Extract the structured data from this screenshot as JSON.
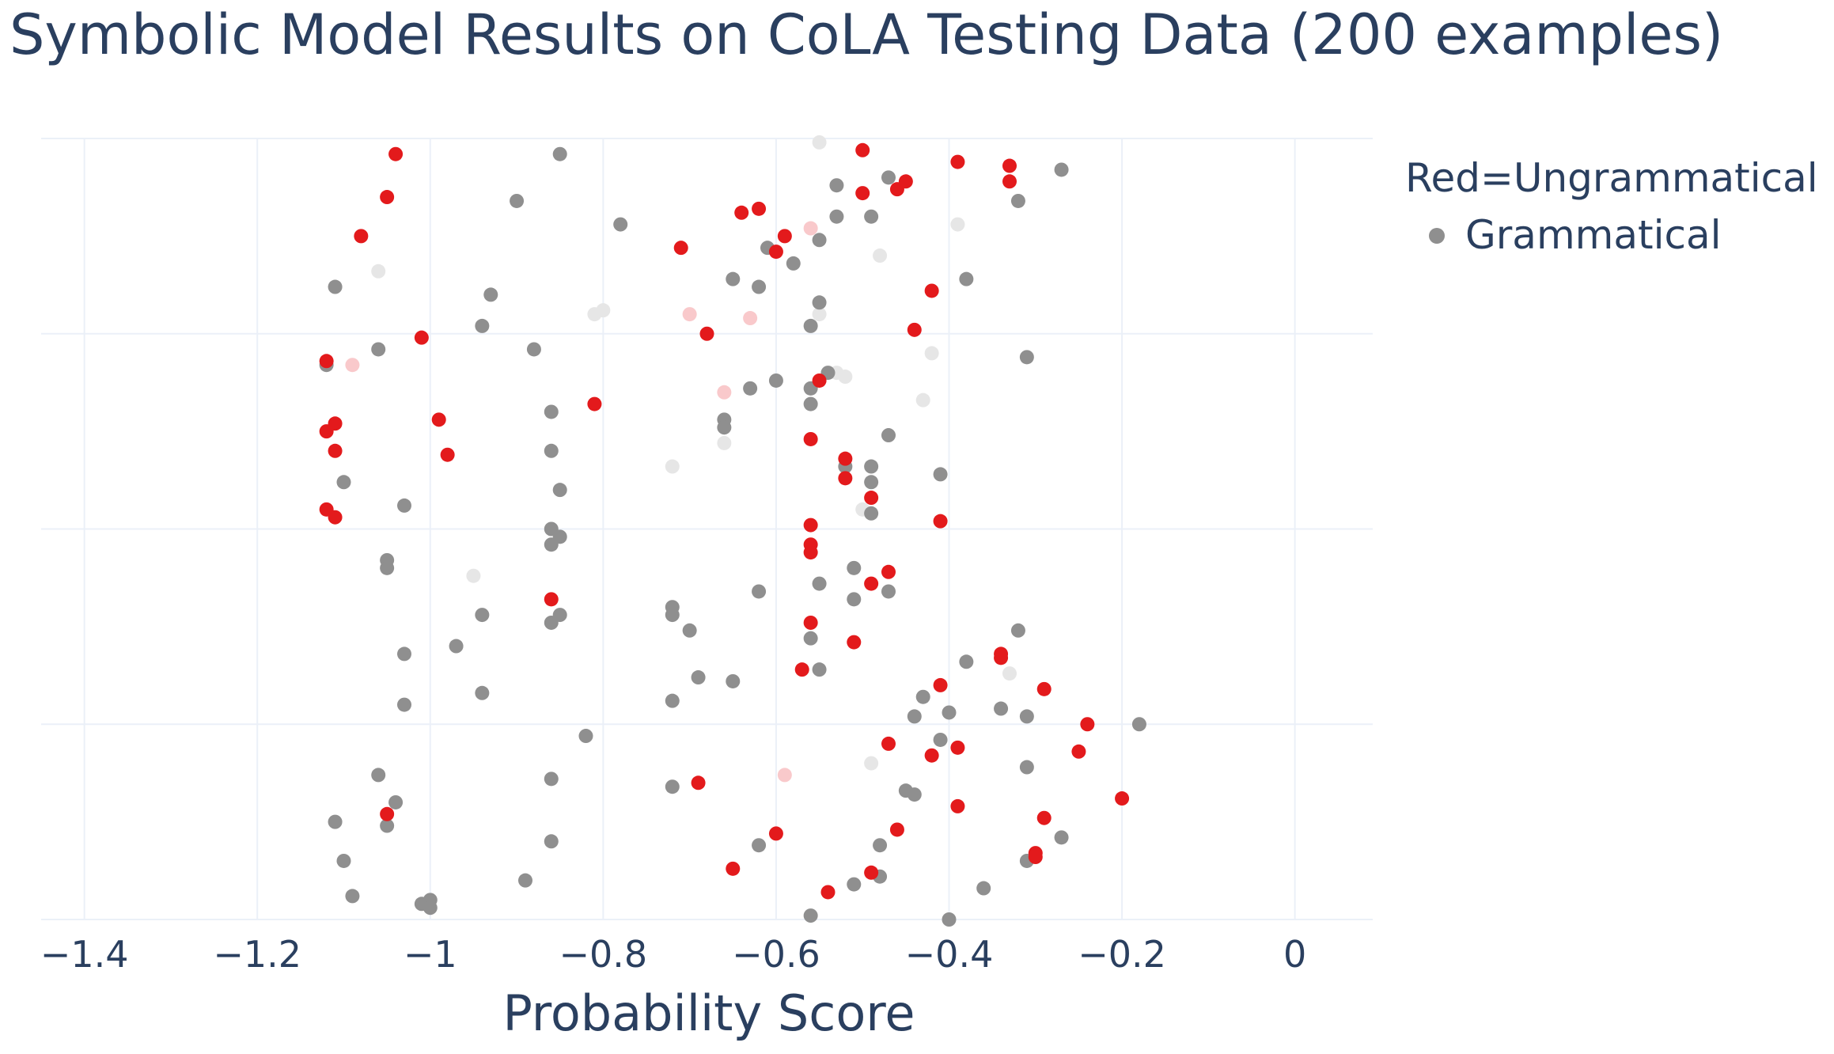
{
  "chart_data": {
    "type": "scatter",
    "title": "Symbolic Model Results on CoLA Testing Data (200 examples)",
    "xlabel": "Probability Score",
    "ylabel": "",
    "xlim": [
      -1.45,
      0.09
    ],
    "ylim": [
      0,
      1
    ],
    "xticks": [
      -1.4,
      -1.2,
      -1,
      -0.8,
      -0.6,
      -0.4,
      -0.2,
      0
    ],
    "xtick_labels": [
      "−1.4",
      "−1.2",
      "−1",
      "−0.8",
      "−0.6",
      "−0.4",
      "−0.2",
      "0"
    ],
    "grid": true,
    "legend_position": "top-right",
    "legend_title": "Red=Ungrammatical",
    "colors": {
      "grammatical": "#8f8f8f",
      "ungrammatical": "#e31a1c",
      "faded_grey": "#e6e6e6",
      "faded_red": "#f9c9cb"
    },
    "series": [
      {
        "name": "Grammatical",
        "points": [
          [
            -0.85,
            0.98
          ],
          [
            -0.53,
            0.94
          ],
          [
            -0.47,
            0.95
          ],
          [
            -0.32,
            0.92
          ],
          [
            -0.27,
            0.96
          ],
          [
            -0.9,
            0.92
          ],
          [
            -0.78,
            0.89
          ],
          [
            -0.53,
            0.9
          ],
          [
            -0.49,
            0.9
          ],
          [
            -0.55,
            0.87
          ],
          [
            -0.61,
            0.86
          ],
          [
            -0.58,
            0.84
          ],
          [
            -1.11,
            0.81
          ],
          [
            -0.93,
            0.8
          ],
          [
            -0.65,
            0.82
          ],
          [
            -0.62,
            0.81
          ],
          [
            -0.55,
            0.79
          ],
          [
            -0.38,
            0.82
          ],
          [
            -0.94,
            0.76
          ],
          [
            -0.56,
            0.76
          ],
          [
            -1.06,
            0.73
          ],
          [
            -0.88,
            0.73
          ],
          [
            -0.31,
            0.72
          ],
          [
            -1.12,
            0.71
          ],
          [
            -0.54,
            0.7
          ],
          [
            -0.63,
            0.68
          ],
          [
            -0.6,
            0.69
          ],
          [
            -0.56,
            0.68
          ],
          [
            -0.86,
            0.65
          ],
          [
            -0.56,
            0.66
          ],
          [
            -0.66,
            0.64
          ],
          [
            -0.66,
            0.63
          ],
          [
            -0.47,
            0.62
          ],
          [
            -0.86,
            0.6
          ],
          [
            -0.52,
            0.58
          ],
          [
            -0.49,
            0.58
          ],
          [
            -0.41,
            0.57
          ],
          [
            -1.1,
            0.56
          ],
          [
            -0.85,
            0.55
          ],
          [
            -0.49,
            0.56
          ],
          [
            -1.03,
            0.53
          ],
          [
            -0.49,
            0.52
          ],
          [
            -0.86,
            0.5
          ],
          [
            -0.85,
            0.49
          ],
          [
            -0.86,
            0.48
          ],
          [
            -1.05,
            0.46
          ],
          [
            -1.05,
            0.45
          ],
          [
            -0.51,
            0.45
          ],
          [
            -0.55,
            0.43
          ],
          [
            -0.62,
            0.42
          ],
          [
            -0.47,
            0.42
          ],
          [
            -0.51,
            0.41
          ],
          [
            -0.72,
            0.4
          ],
          [
            -0.72,
            0.39
          ],
          [
            -0.94,
            0.39
          ],
          [
            -0.85,
            0.39
          ],
          [
            -0.86,
            0.38
          ],
          [
            -0.7,
            0.37
          ],
          [
            -0.56,
            0.36
          ],
          [
            -0.32,
            0.37
          ],
          [
            -0.97,
            0.35
          ],
          [
            -1.03,
            0.34
          ],
          [
            -0.38,
            0.33
          ],
          [
            -0.55,
            0.32
          ],
          [
            -0.69,
            0.31
          ],
          [
            -0.65,
            0.305
          ],
          [
            -0.94,
            0.29
          ],
          [
            -0.72,
            0.28
          ],
          [
            -1.03,
            0.275
          ],
          [
            -0.43,
            0.285
          ],
          [
            -0.34,
            0.27
          ],
          [
            -0.4,
            0.265
          ],
          [
            -0.44,
            0.26
          ],
          [
            -0.31,
            0.26
          ],
          [
            -0.18,
            0.25
          ],
          [
            -0.82,
            0.235
          ],
          [
            -0.41,
            0.23
          ],
          [
            -0.31,
            0.195
          ],
          [
            -1.06,
            0.185
          ],
          [
            -0.86,
            0.18
          ],
          [
            -0.72,
            0.17
          ],
          [
            -0.45,
            0.165
          ],
          [
            -0.44,
            0.16
          ],
          [
            -1.04,
            0.15
          ],
          [
            -1.11,
            0.125
          ],
          [
            -1.05,
            0.12
          ],
          [
            -0.27,
            0.105
          ],
          [
            -0.86,
            0.1
          ],
          [
            -0.62,
            0.095
          ],
          [
            -0.48,
            0.095
          ],
          [
            -0.31,
            0.075
          ],
          [
            -1.1,
            0.075
          ],
          [
            -0.89,
            0.05
          ],
          [
            -0.51,
            0.045
          ],
          [
            -0.48,
            0.055
          ],
          [
            -0.36,
            0.04
          ],
          [
            -1.09,
            0.03
          ],
          [
            -1.01,
            0.02
          ],
          [
            -1,
            0.025
          ],
          [
            -1,
            0.015
          ],
          [
            -0.56,
            0.005
          ],
          [
            -0.4,
            0.0
          ]
        ]
      },
      {
        "name": "",
        "points": [
          [
            -1.04,
            0.98
          ],
          [
            -0.5,
            0.985
          ],
          [
            -0.39,
            0.97
          ],
          [
            -0.33,
            0.965
          ],
          [
            -0.45,
            0.945
          ],
          [
            -0.33,
            0.945
          ],
          [
            -1.05,
            0.925
          ],
          [
            -0.5,
            0.93
          ],
          [
            -0.46,
            0.935
          ],
          [
            -0.64,
            0.905
          ],
          [
            -0.62,
            0.91
          ],
          [
            -1.08,
            0.875
          ],
          [
            -0.59,
            0.875
          ],
          [
            -0.71,
            0.86
          ],
          [
            -0.6,
            0.855
          ],
          [
            -0.42,
            0.805
          ],
          [
            -0.44,
            0.755
          ],
          [
            -1.01,
            0.745
          ],
          [
            -0.68,
            0.75
          ],
          [
            -1.12,
            0.715
          ],
          [
            -0.55,
            0.69
          ],
          [
            -0.81,
            0.66
          ],
          [
            -0.99,
            0.64
          ],
          [
            -1.11,
            0.635
          ],
          [
            -1.12,
            0.625
          ],
          [
            -0.56,
            0.615
          ],
          [
            -1.11,
            0.6
          ],
          [
            -0.98,
            0.595
          ],
          [
            -0.52,
            0.59
          ],
          [
            -0.52,
            0.565
          ],
          [
            -0.49,
            0.54
          ],
          [
            -1.12,
            0.525
          ],
          [
            -1.11,
            0.515
          ],
          [
            -0.41,
            0.51
          ],
          [
            -0.56,
            0.505
          ],
          [
            -0.56,
            0.48
          ],
          [
            -0.56,
            0.47
          ],
          [
            -0.47,
            0.445
          ],
          [
            -0.49,
            0.43
          ],
          [
            -0.86,
            0.41
          ],
          [
            -0.56,
            0.38
          ],
          [
            -0.51,
            0.355
          ],
          [
            -0.34,
            0.34
          ],
          [
            -0.34,
            0.335
          ],
          [
            -0.57,
            0.32
          ],
          [
            -0.41,
            0.3
          ],
          [
            -0.29,
            0.295
          ],
          [
            -0.24,
            0.25
          ],
          [
            -0.47,
            0.225
          ],
          [
            -0.39,
            0.22
          ],
          [
            -0.42,
            0.21
          ],
          [
            -0.25,
            0.215
          ],
          [
            -0.69,
            0.175
          ],
          [
            -0.2,
            0.155
          ],
          [
            -0.39,
            0.145
          ],
          [
            -1.05,
            0.135
          ],
          [
            -0.29,
            0.13
          ],
          [
            -0.46,
            0.115
          ],
          [
            -0.6,
            0.11
          ],
          [
            -0.3,
            0.085
          ],
          [
            -0.3,
            0.08
          ],
          [
            -0.65,
            0.065
          ],
          [
            -0.49,
            0.06
          ],
          [
            -0.54,
            0.035
          ]
        ]
      }
    ],
    "faded_points": {
      "grey": [
        [
          -0.55,
          0.995
        ],
        [
          -0.39,
          0.89
        ],
        [
          -0.48,
          0.85
        ],
        [
          -1.06,
          0.83
        ],
        [
          -0.81,
          0.775
        ],
        [
          -0.8,
          0.78
        ],
        [
          -0.55,
          0.775
        ],
        [
          -0.42,
          0.725
        ],
        [
          -0.53,
          0.7
        ],
        [
          -0.52,
          0.695
        ],
        [
          -0.43,
          0.665
        ],
        [
          -0.72,
          0.58
        ],
        [
          -0.66,
          0.61
        ],
        [
          -0.5,
          0.525
        ],
        [
          -0.95,
          0.44
        ],
        [
          -0.33,
          0.315
        ],
        [
          -0.49,
          0.2
        ]
      ],
      "red": [
        [
          -0.56,
          0.885
        ],
        [
          -0.7,
          0.775
        ],
        [
          -0.63,
          0.77
        ],
        [
          -1.09,
          0.71
        ],
        [
          -0.66,
          0.675
        ],
        [
          -0.59,
          0.185
        ]
      ]
    }
  }
}
